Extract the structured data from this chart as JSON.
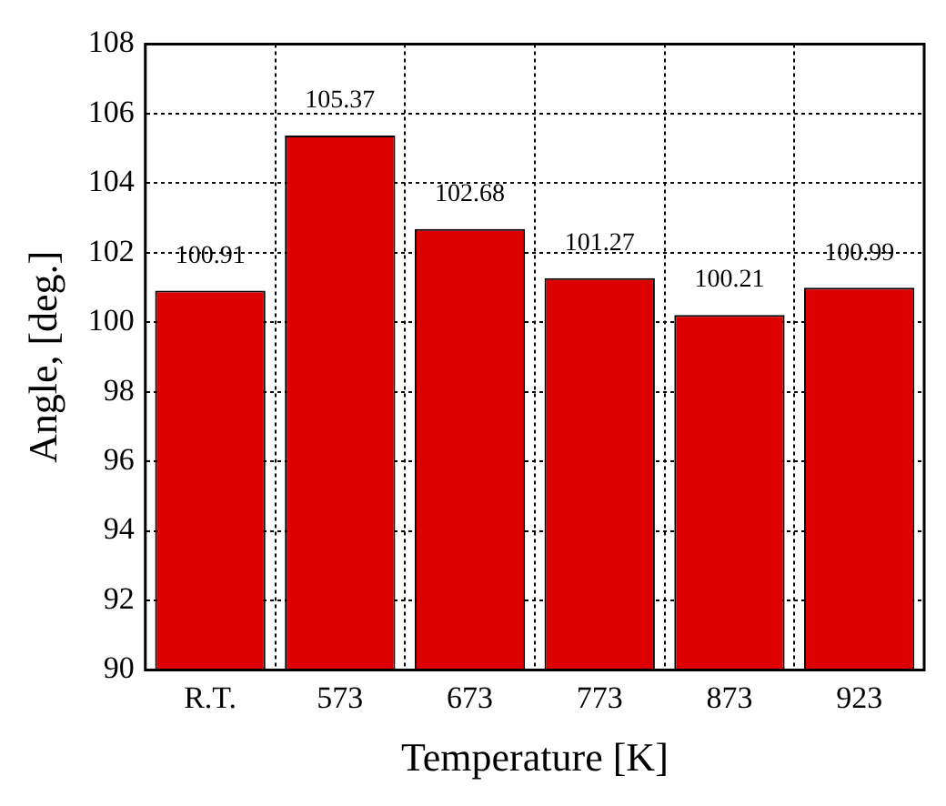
{
  "chart_data": {
    "type": "bar",
    "xlabel": "Temperature [K]",
    "ylabel": "Angle, [deg.]",
    "categories": [
      "R.T.",
      "573",
      "673",
      "773",
      "873",
      "923"
    ],
    "values": [
      100.91,
      105.37,
      102.68,
      101.27,
      100.21,
      100.99
    ],
    "color": "#dd0000",
    "ylim": [
      90,
      108
    ],
    "yticks": [
      90,
      92,
      94,
      96,
      98,
      100,
      102,
      104,
      106,
      108
    ],
    "grid": true,
    "data_labels": true,
    "legend": false
  }
}
